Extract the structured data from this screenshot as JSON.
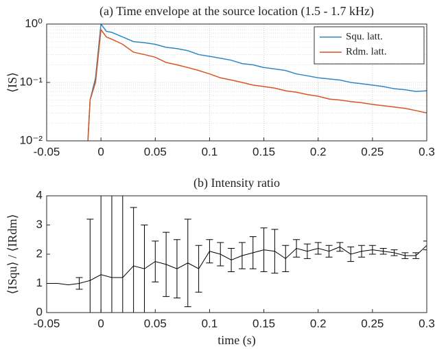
{
  "chart_data": [
    {
      "type": "line",
      "title": "(a) Time envelope at the source location (1.5 - 1.7 kHz)",
      "ylabel": "⟨IS⟩",
      "x": [
        -0.012,
        -0.01,
        -0.005,
        0,
        0.005,
        0.01,
        0.02,
        0.03,
        0.04,
        0.05,
        0.06,
        0.07,
        0.08,
        0.09,
        0.1,
        0.11,
        0.12,
        0.13,
        0.14,
        0.15,
        0.16,
        0.17,
        0.18,
        0.19,
        0.2,
        0.21,
        0.22,
        0.23,
        0.24,
        0.25,
        0.26,
        0.27,
        0.28,
        0.29,
        0.3
      ],
      "series": [
        {
          "name": "Squ. latt.",
          "color": "#2f86c6",
          "values": [
            0.01,
            0.05,
            0.12,
            1.0,
            0.75,
            0.72,
            0.6,
            0.5,
            0.48,
            0.45,
            0.4,
            0.38,
            0.35,
            0.3,
            0.28,
            0.26,
            0.24,
            0.21,
            0.2,
            0.18,
            0.17,
            0.16,
            0.14,
            0.13,
            0.12,
            0.115,
            0.11,
            0.1,
            0.095,
            0.09,
            0.085,
            0.078,
            0.075,
            0.07,
            0.072
          ]
        },
        {
          "name": "Rdm. latt.",
          "color": "#d9541e",
          "values": [
            0.01,
            0.05,
            0.1,
            0.8,
            0.6,
            0.55,
            0.45,
            0.33,
            0.3,
            0.27,
            0.22,
            0.2,
            0.18,
            0.16,
            0.14,
            0.12,
            0.11,
            0.1,
            0.09,
            0.085,
            0.08,
            0.072,
            0.068,
            0.062,
            0.058,
            0.052,
            0.05,
            0.047,
            0.045,
            0.042,
            0.04,
            0.038,
            0.036,
            0.033,
            0.03
          ]
        }
      ],
      "xlim": [
        -0.05,
        0.3
      ],
      "xticks": [
        -0.05,
        0,
        0.05,
        0.1,
        0.15,
        0.2,
        0.25,
        0.3
      ],
      "ylim": [
        0.01,
        1
      ],
      "yticks": [
        {
          "value": 0.01,
          "label": "10⁻²"
        },
        {
          "value": 0.1,
          "label": "10⁻¹"
        },
        {
          "value": 1,
          "label": "10⁰"
        }
      ],
      "log_y": true,
      "grid": true,
      "legend": "top-right"
    },
    {
      "type": "errorbar",
      "title": "(b) Intensity ratio",
      "ylabel": "⟨ISqu⟩ / ⟨IRdm⟩",
      "xlabel": "time (s)",
      "color": "#000000",
      "x": [
        -0.05,
        -0.04,
        -0.03,
        -0.02,
        -0.01,
        0,
        0.01,
        0.02,
        0.03,
        0.04,
        0.05,
        0.06,
        0.07,
        0.08,
        0.09,
        0.1,
        0.11,
        0.12,
        0.13,
        0.14,
        0.15,
        0.16,
        0.17,
        0.18,
        0.19,
        0.2,
        0.21,
        0.22,
        0.23,
        0.24,
        0.25,
        0.26,
        0.27,
        0.28,
        0.29,
        0.3
      ],
      "values": [
        1.0,
        1.0,
        0.95,
        1.0,
        1.1,
        1.3,
        1.2,
        1.2,
        1.6,
        1.5,
        1.75,
        1.65,
        1.5,
        1.7,
        1.5,
        2.1,
        2.0,
        1.8,
        1.95,
        2.05,
        2.15,
        2.1,
        1.85,
        2.2,
        2.1,
        2.2,
        2.1,
        2.25,
        2.0,
        2.1,
        2.15,
        2.1,
        2.05,
        1.95,
        1.95,
        2.3
      ],
      "errors": [
        null,
        null,
        null,
        0.2,
        2.1,
        3,
        3,
        3,
        2.0,
        1.5,
        0.7,
        1.1,
        1.0,
        1.5,
        0.8,
        0.4,
        0.4,
        0.4,
        0.45,
        0.55,
        0.75,
        0.75,
        0.45,
        0.3,
        0.25,
        0.2,
        0.2,
        0.15,
        0.25,
        0.2,
        0.15,
        0.1,
        0.1,
        0.1,
        0.1,
        0.15
      ],
      "xlim": [
        -0.05,
        0.3
      ],
      "xticks": [
        -0.05,
        0,
        0.05,
        0.1,
        0.15,
        0.2,
        0.25,
        0.3
      ],
      "ylim": [
        0,
        4
      ],
      "yticks": [
        0,
        1,
        2,
        3,
        4
      ],
      "grid": false
    }
  ]
}
